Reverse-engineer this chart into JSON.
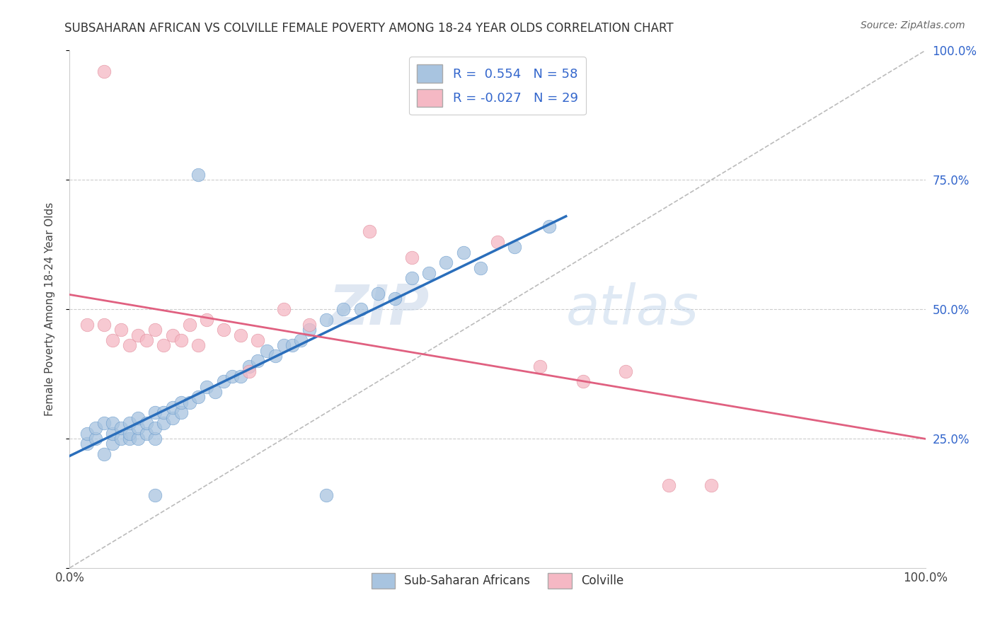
{
  "title": "SUBSAHARAN AFRICAN VS COLVILLE FEMALE POVERTY AMONG 18-24 YEAR OLDS CORRELATION CHART",
  "source": "Source: ZipAtlas.com",
  "ylabel": "Female Poverty Among 18-24 Year Olds",
  "legend_blue_label": "Sub-Saharan Africans",
  "legend_pink_label": "Colville",
  "R_blue": 0.554,
  "N_blue": 58,
  "R_pink": -0.027,
  "N_pink": 29,
  "blue_color": "#a8c4e0",
  "pink_color": "#f5b8c4",
  "blue_line_color": "#2a6ebb",
  "pink_line_color": "#e06080",
  "blue_edge_color": "#6699cc",
  "pink_edge_color": "#e08898",
  "watermark_zip": "ZIP",
  "watermark_atlas": "atlas",
  "blue_points_x": [
    0.02,
    0.02,
    0.03,
    0.03,
    0.04,
    0.04,
    0.05,
    0.05,
    0.05,
    0.06,
    0.06,
    0.07,
    0.07,
    0.07,
    0.08,
    0.08,
    0.08,
    0.09,
    0.09,
    0.1,
    0.1,
    0.1,
    0.11,
    0.11,
    0.12,
    0.12,
    0.13,
    0.13,
    0.14,
    0.15,
    0.15,
    0.16,
    0.17,
    0.18,
    0.19,
    0.2,
    0.21,
    0.22,
    0.23,
    0.24,
    0.25,
    0.26,
    0.27,
    0.28,
    0.3,
    0.32,
    0.34,
    0.36,
    0.38,
    0.4,
    0.42,
    0.44,
    0.46,
    0.48,
    0.52,
    0.56,
    0.3,
    0.1
  ],
  "blue_points_y": [
    0.24,
    0.26,
    0.25,
    0.27,
    0.22,
    0.28,
    0.24,
    0.26,
    0.28,
    0.25,
    0.27,
    0.25,
    0.26,
    0.28,
    0.25,
    0.27,
    0.29,
    0.26,
    0.28,
    0.25,
    0.27,
    0.3,
    0.28,
    0.3,
    0.29,
    0.31,
    0.3,
    0.32,
    0.32,
    0.76,
    0.33,
    0.35,
    0.34,
    0.36,
    0.37,
    0.37,
    0.39,
    0.4,
    0.42,
    0.41,
    0.43,
    0.43,
    0.44,
    0.46,
    0.48,
    0.5,
    0.5,
    0.53,
    0.52,
    0.56,
    0.57,
    0.59,
    0.61,
    0.58,
    0.62,
    0.66,
    0.14,
    0.14
  ],
  "pink_points_x": [
    0.02,
    0.04,
    0.05,
    0.06,
    0.07,
    0.08,
    0.09,
    0.1,
    0.11,
    0.12,
    0.13,
    0.14,
    0.15,
    0.16,
    0.18,
    0.2,
    0.21,
    0.22,
    0.25,
    0.28,
    0.35,
    0.4,
    0.5,
    0.55,
    0.6,
    0.65,
    0.7,
    0.75,
    0.04
  ],
  "pink_points_y": [
    0.47,
    0.47,
    0.44,
    0.46,
    0.43,
    0.45,
    0.44,
    0.46,
    0.43,
    0.45,
    0.44,
    0.47,
    0.43,
    0.48,
    0.46,
    0.45,
    0.38,
    0.44,
    0.5,
    0.47,
    0.65,
    0.6,
    0.63,
    0.39,
    0.36,
    0.38,
    0.16,
    0.16,
    0.96
  ]
}
